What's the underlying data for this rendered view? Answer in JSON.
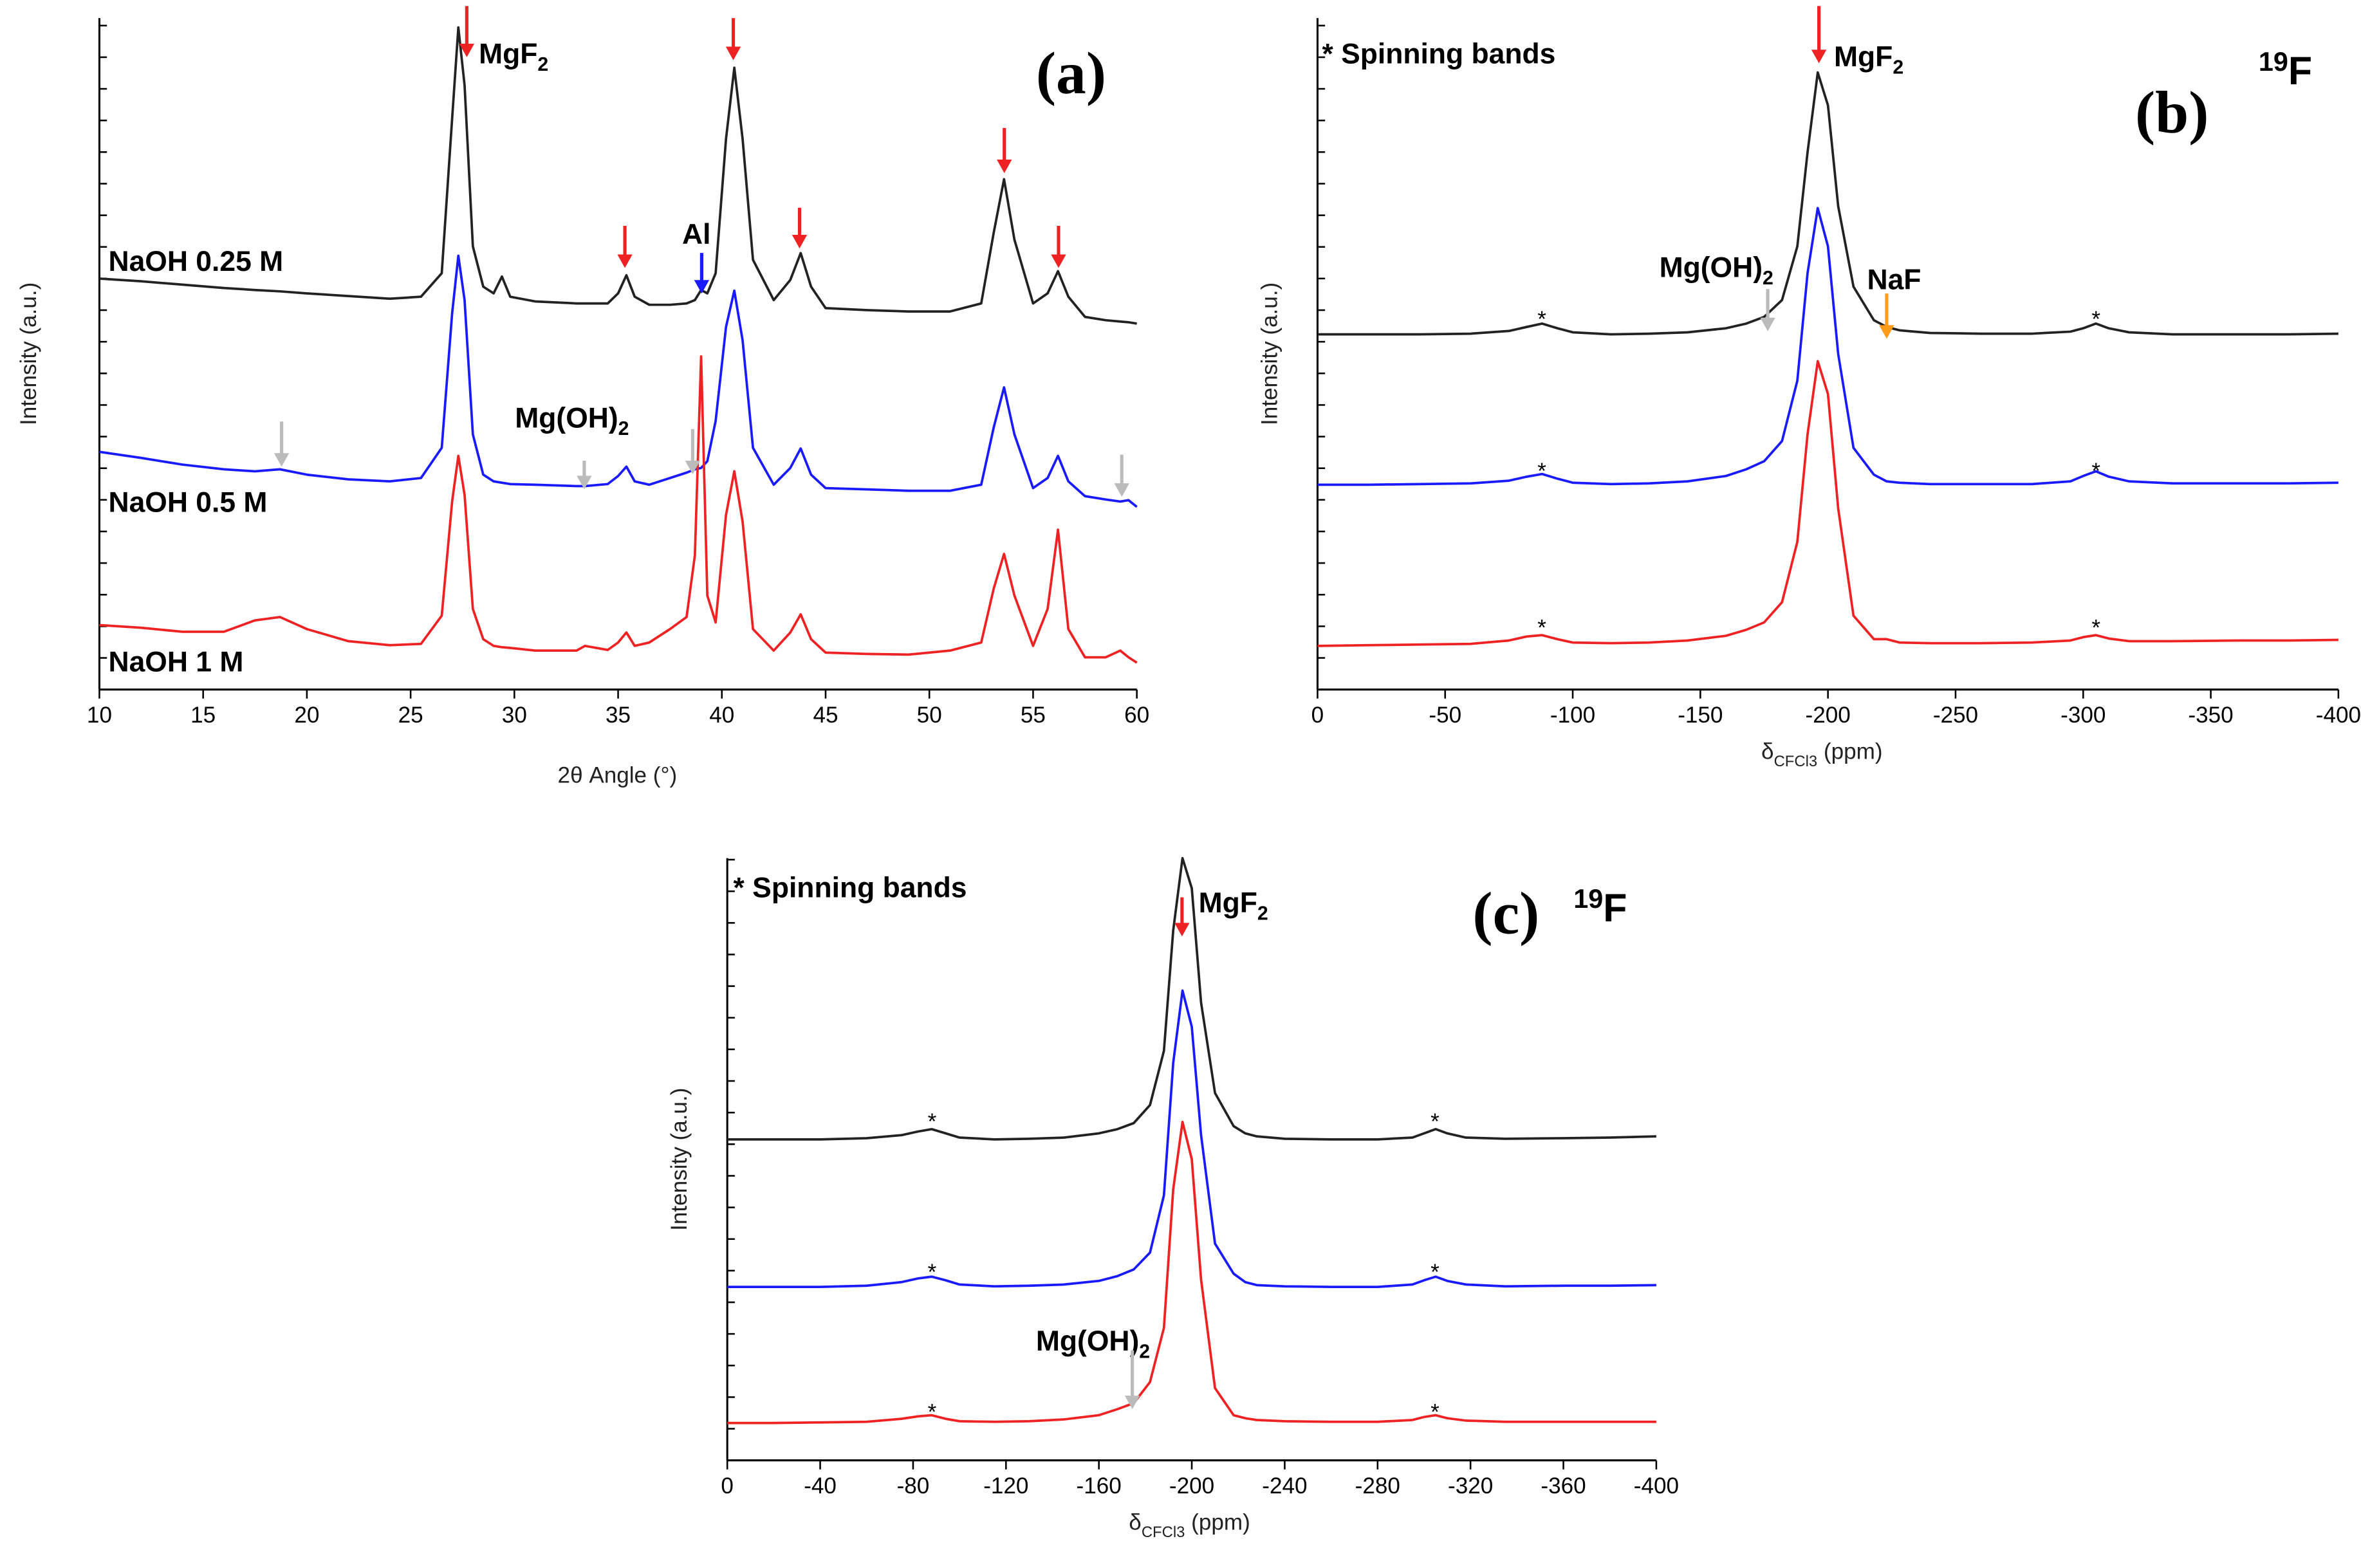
{
  "chart_data": [
    {
      "type": "line",
      "x": [
        10,
        12,
        14,
        16,
        17.5,
        18.7,
        20,
        22,
        24,
        25.5,
        26.5,
        27,
        27.3,
        27.6,
        28,
        28.5,
        29,
        29.4,
        29.8,
        31,
        33,
        33.4,
        34.5,
        35,
        35.4,
        35.8,
        36.5,
        37.5,
        38.3,
        38.7,
        39,
        39.3,
        39.7,
        40.2,
        40.6,
        41,
        41.5,
        42.5,
        43.3,
        43.8,
        44.3,
        45,
        47,
        49,
        51,
        52.5,
        53.1,
        53.6,
        54.1,
        55,
        55.7,
        56.2,
        56.7,
        57.5,
        58.5,
        59.2,
        59.6,
        60
      ],
      "series": [
        {
          "name": "NaOH 0.25 M",
          "color": "#222222",
          "values": [
            61.2,
            60.8,
            60.3,
            59.8,
            59.5,
            59.3,
            59.0,
            58.6,
            58.2,
            58.5,
            62,
            85,
            98.6,
            90,
            66,
            60,
            59,
            61.5,
            58.5,
            57.8,
            57.5,
            57.5,
            57.5,
            59,
            61.7,
            58.5,
            57.3,
            57.3,
            57.5,
            58,
            59.5,
            59,
            62,
            82,
            92.6,
            82,
            64,
            58,
            61,
            65,
            60,
            56.8,
            56.5,
            56.3,
            56.3,
            57.5,
            68,
            76,
            67,
            57.5,
            59,
            62.3,
            58.5,
            55.5,
            55,
            54.8,
            54.7,
            54.5
          ]
        },
        {
          "name": "NaOH 0.5 M",
          "color": "#1a1aff",
          "values": [
            35.4,
            34.5,
            33.5,
            32.8,
            32.5,
            32.8,
            32,
            31.3,
            31,
            31.5,
            36,
            56,
            64.6,
            58,
            38,
            32,
            31,
            30.8,
            30.6,
            30.5,
            30.3,
            30.3,
            30.6,
            31.8,
            33.2,
            31,
            30.5,
            31.5,
            32.3,
            32.8,
            33,
            34,
            40,
            54,
            59.4,
            52,
            36,
            30.5,
            33,
            35.9,
            32,
            30,
            29.8,
            29.6,
            29.6,
            30.5,
            39,
            45,
            38,
            30,
            31.5,
            34.8,
            31,
            28.8,
            28.3,
            28,
            28.2,
            27.2
          ]
        },
        {
          "name": "NaOH 1 M",
          "color": "#ee2222",
          "values": [
            9.6,
            9.2,
            8.6,
            8.6,
            10.3,
            10.8,
            9,
            7.2,
            6.6,
            6.8,
            11,
            28,
            34.8,
            29,
            12,
            7.5,
            6.5,
            6.3,
            6.2,
            5.8,
            5.8,
            6.5,
            5.9,
            7,
            8.5,
            6.5,
            7,
            9,
            10.8,
            20,
            49.6,
            14,
            10,
            26,
            32.5,
            25,
            9,
            5.8,
            8.5,
            11.2,
            7.5,
            5.5,
            5.3,
            5.2,
            5.8,
            7,
            15,
            20.2,
            14,
            6.5,
            12,
            23.8,
            9,
            4.8,
            4.8,
            5.8,
            4.8,
            4
          ]
        }
      ],
      "xlim": [
        10,
        60
      ],
      "xticks": [
        10,
        15,
        20,
        25,
        30,
        35,
        40,
        45,
        50,
        55,
        60
      ],
      "ylim": [
        0,
        100
      ],
      "annotations": {
        "panel_label": "(a)",
        "xlabel": "2θ Angle (°)",
        "ylabel": "Intensity (a.u.)",
        "mgf2": [
          "MgF",
          "2"
        ],
        "al": "Al",
        "mgoh2": [
          "Mg(OH)",
          "2"
        ]
      }
    },
    {
      "type": "line",
      "x": [
        0,
        -20,
        -40,
        -60,
        -75,
        -82,
        -88,
        -94,
        -100,
        -115,
        -130,
        -145,
        -160,
        -168,
        -175,
        -182,
        -188,
        -192,
        -196,
        -200,
        -204,
        -210,
        -218,
        -223,
        -228,
        -240,
        -260,
        -280,
        -295,
        -300,
        -305,
        -310,
        -318,
        -335,
        -360,
        -380,
        -400
      ],
      "series": [
        {
          "color": "#222222",
          "values": [
            52.9,
            52.9,
            52.9,
            53,
            53.4,
            54,
            54.5,
            53.8,
            53.2,
            52.9,
            53,
            53.2,
            53.8,
            54.5,
            55.5,
            58,
            66,
            80,
            91.9,
            87,
            72,
            60,
            55,
            54,
            53.5,
            53.1,
            53,
            53,
            53.3,
            53.8,
            54.5,
            53.8,
            53.2,
            52.9,
            52.9,
            52.9,
            53
          ]
        },
        {
          "color": "#1a1aff",
          "values": [
            30.5,
            30.5,
            30.6,
            30.7,
            31.1,
            31.7,
            32.1,
            31.4,
            30.8,
            30.6,
            30.7,
            31,
            31.8,
            32.8,
            34,
            37,
            46,
            62,
            71.7,
            66,
            50,
            36,
            32,
            31,
            30.8,
            30.6,
            30.6,
            30.6,
            31,
            31.8,
            32.5,
            31.7,
            31,
            30.7,
            30.7,
            30.7,
            30.8
          ]
        },
        {
          "color": "#ee2222",
          "values": [
            6.5,
            6.6,
            6.7,
            6.8,
            7.3,
            7.9,
            8.1,
            7.5,
            7,
            6.9,
            7,
            7.3,
            8,
            8.9,
            10,
            13,
            22,
            38,
            48.9,
            44,
            27,
            11,
            7.5,
            7.5,
            7,
            6.9,
            6.9,
            7,
            7.3,
            7.8,
            8.1,
            7.6,
            7.2,
            7.2,
            7.3,
            7.3,
            7.4
          ]
        }
      ],
      "xlim": [
        0,
        -400
      ],
      "xticks": [
        0,
        -50,
        -100,
        -150,
        -200,
        -250,
        -300,
        -350,
        -400
      ],
      "ylim": [
        0,
        100
      ],
      "annotations": {
        "panel_label": "(b)",
        "xlabel": [
          "δ",
          "CFCl3",
          " (ppm)"
        ],
        "ylabel": "Intensity (a.u.)",
        "spinning": "*  Spinning bands",
        "mgf2": [
          "MgF",
          "2"
        ],
        "nucleus": [
          "19",
          "F"
        ],
        "mgoh2": [
          "Mg(OH)",
          "2"
        ],
        "naf": "NaF",
        "band_marker": "*"
      }
    },
    {
      "type": "line",
      "x": [
        0,
        -20,
        -40,
        -60,
        -75,
        -82,
        -88,
        -94,
        -100,
        -115,
        -130,
        -145,
        -160,
        -168,
        -175,
        -182,
        -188,
        -192,
        -196,
        -200,
        -204,
        -210,
        -218,
        -223,
        -228,
        -240,
        -260,
        -280,
        -295,
        -300,
        -305,
        -310,
        -318,
        -335,
        -360,
        -380,
        -400
      ],
      "series": [
        {
          "color": "#222222",
          "values": [
            53.3,
            53.3,
            53.3,
            53.5,
            54,
            54.6,
            55,
            54.3,
            53.6,
            53.3,
            53.4,
            53.6,
            54.3,
            55,
            56,
            59,
            68,
            88,
            100,
            95,
            76,
            61,
            55.5,
            54.3,
            53.8,
            53.4,
            53.3,
            53.3,
            53.6,
            54.3,
            55,
            54.3,
            53.6,
            53.4,
            53.5,
            53.6,
            53.8
          ]
        },
        {
          "color": "#1a1aff",
          "values": [
            28.8,
            28.8,
            28.8,
            29,
            29.6,
            30.2,
            30.5,
            29.9,
            29.2,
            28.9,
            29,
            29.2,
            29.8,
            30.6,
            31.7,
            34.5,
            44,
            66,
            78,
            72,
            54,
            36,
            31,
            29.6,
            29.1,
            28.9,
            28.8,
            28.8,
            29.2,
            29.9,
            30.5,
            29.8,
            29.2,
            28.9,
            29,
            29,
            29.1
          ]
        },
        {
          "color": "#ee2222",
          "values": [
            6.2,
            6.2,
            6.3,
            6.4,
            6.9,
            7.3,
            7.5,
            6.9,
            6.5,
            6.4,
            6.5,
            6.8,
            7.5,
            8.5,
            9.5,
            13,
            22,
            45,
            56.2,
            50,
            30,
            12,
            7.5,
            7,
            6.7,
            6.5,
            6.4,
            6.4,
            6.7,
            7.2,
            7.5,
            7,
            6.6,
            6.4,
            6.4,
            6.4,
            6.4
          ]
        }
      ],
      "xlim": [
        0,
        -400
      ],
      "xticks": [
        0,
        -40,
        -80,
        -120,
        -160,
        -200,
        -240,
        -280,
        -320,
        -360,
        -400
      ],
      "ylim": [
        0,
        100
      ],
      "annotations": {
        "panel_label": "(c)",
        "xlabel": [
          "δ",
          "CFCl3",
          " (ppm)"
        ],
        "ylabel": "Intensity (a.u.)",
        "spinning": "* Spinning bands",
        "mgf2": [
          "MgF",
          "2"
        ],
        "nucleus": [
          "19",
          "F"
        ],
        "mgoh2": [
          "Mg(OH)",
          "2"
        ],
        "band_marker": "*"
      }
    }
  ]
}
